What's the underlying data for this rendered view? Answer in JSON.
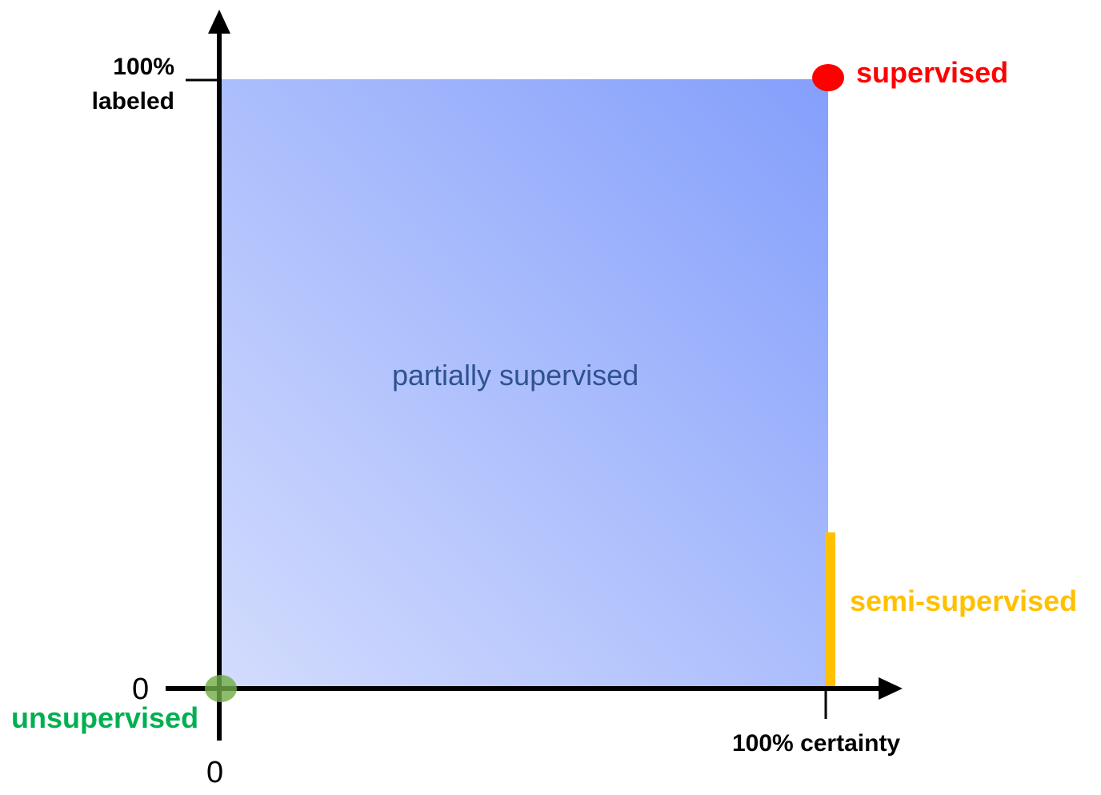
{
  "axes": {
    "y_max_label_line1": "100%",
    "y_max_label_line2": "labeled",
    "x_max_label": "100% certainty",
    "y_origin_label": "0",
    "x_origin_label": "0"
  },
  "region": {
    "label": "partially supervised",
    "gradient_light": "#d3dcfd",
    "gradient_dark": "#849ffc"
  },
  "points": {
    "supervised": {
      "label": "supervised",
      "color": "#ff0000",
      "x": 1.0,
      "y": 1.0
    },
    "unsupervised": {
      "label": "unsupervised",
      "color": "#00b050",
      "marker_color": "#70ad47",
      "x": 0.0,
      "y": 0.0
    },
    "semi_supervised": {
      "label": "semi-supervised",
      "color": "#ffc000",
      "x": 1.0,
      "y_range": [
        0.0,
        0.25
      ]
    }
  }
}
